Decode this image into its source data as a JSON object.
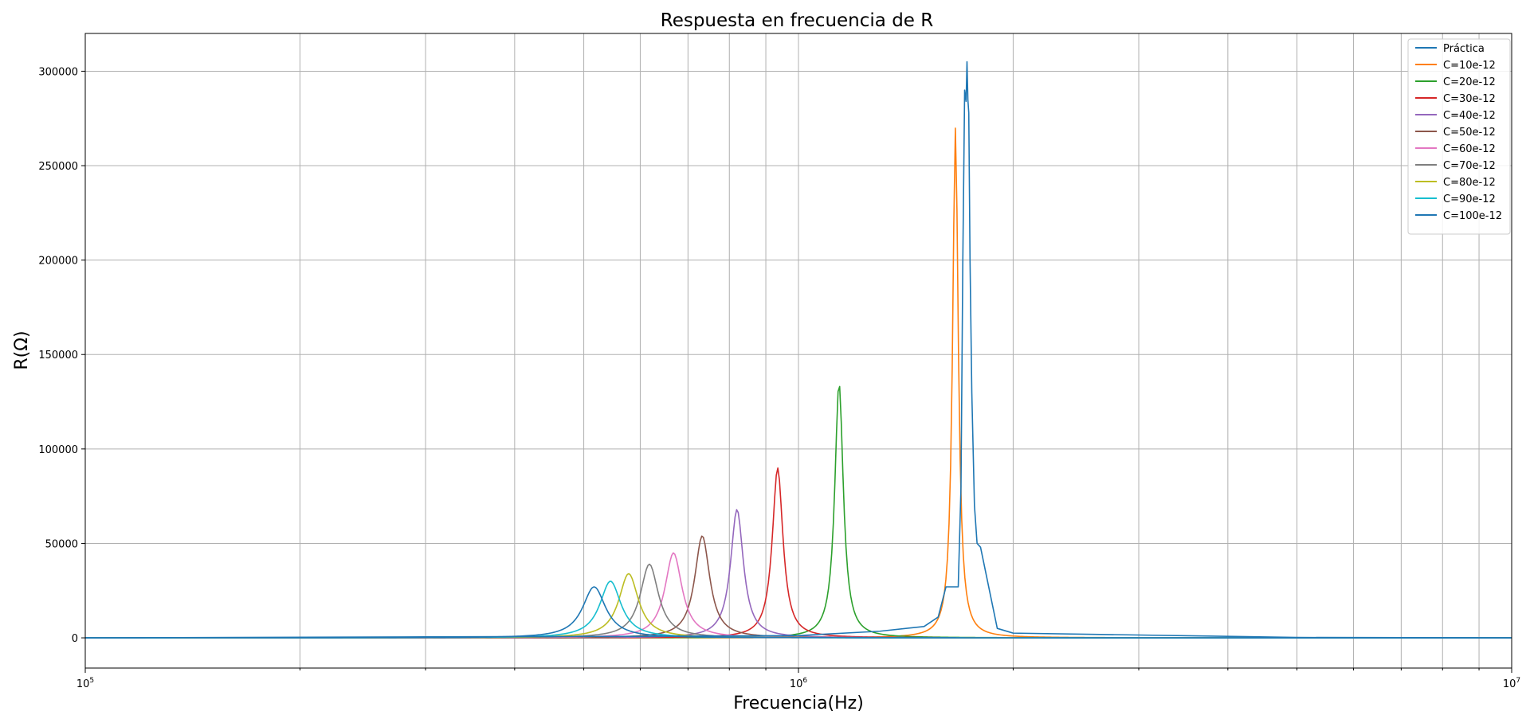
{
  "chart_data": {
    "type": "line",
    "title": "Respuesta en frecuencia de R",
    "xlabel": "Frecuencia(Hz)",
    "ylabel": "R(Ω)",
    "xscale": "log",
    "xlim": [
      100000,
      10000000
    ],
    "ylim": [
      -16000,
      320000
    ],
    "grid": true,
    "legend_position": "top-right",
    "x_ticks": [
      {
        "value": 100000,
        "base": "10",
        "exp": "5"
      },
      {
        "value": 1000000,
        "base": "10",
        "exp": "6"
      },
      {
        "value": 10000000,
        "base": "10",
        "exp": "7"
      }
    ],
    "y_ticks": [
      {
        "value": 0,
        "label": "0"
      },
      {
        "value": 50000,
        "label": "50000"
      },
      {
        "value": 100000,
        "label": "100000"
      },
      {
        "value": 150000,
        "label": "150000"
      },
      {
        "value": 200000,
        "label": "200000"
      },
      {
        "value": 250000,
        "label": "250000"
      },
      {
        "value": 300000,
        "label": "300000"
      }
    ],
    "series": [
      {
        "name": "Práctica",
        "color": "#1f77b4",
        "points": [
          [
            100000,
            0
          ],
          [
            300000,
            500
          ],
          [
            600000,
            800
          ],
          [
            1000000,
            1200
          ],
          [
            1300000,
            3500
          ],
          [
            1500000,
            6000
          ],
          [
            1570000,
            11000
          ],
          [
            1610000,
            27000
          ],
          [
            1675000,
            27000
          ],
          [
            1690000,
            80000
          ],
          [
            1700000,
            200000
          ],
          [
            1710000,
            290000
          ],
          [
            1718000,
            284000
          ],
          [
            1723000,
            305000
          ],
          [
            1728000,
            285000
          ],
          [
            1733000,
            278000
          ],
          [
            1740000,
            200000
          ],
          [
            1750000,
            130000
          ],
          [
            1765000,
            70000
          ],
          [
            1780000,
            50000
          ],
          [
            1800000,
            48000
          ],
          [
            1900000,
            5000
          ],
          [
            2000000,
            2500
          ],
          [
            3000000,
            1500
          ],
          [
            4000000,
            800
          ],
          [
            5000000,
            200
          ],
          [
            10000000,
            0
          ]
        ]
      },
      {
        "name": "C=10e-12",
        "color": "#ff7f0e",
        "f0": 1660000,
        "peak": 270000,
        "Q": 45
      },
      {
        "name": "C=20e-12",
        "color": "#2ca02c",
        "f0": 1140000,
        "peak": 135000,
        "Q": 30
      },
      {
        "name": "C=30e-12",
        "color": "#d62728",
        "f0": 935000,
        "peak": 90000,
        "Q": 24
      },
      {
        "name": "C=40e-12",
        "color": "#9467bd",
        "f0": 820000,
        "peak": 68000,
        "Q": 20
      },
      {
        "name": "C=50e-12",
        "color": "#8c564b",
        "f0": 733000,
        "peak": 54000,
        "Q": 17
      },
      {
        "name": "C=60e-12",
        "color": "#e377c2",
        "f0": 668000,
        "peak": 45000,
        "Q": 15
      },
      {
        "name": "C=70e-12",
        "color": "#7f7f7f",
        "f0": 618000,
        "peak": 39000,
        "Q": 14
      },
      {
        "name": "C=80e-12",
        "color": "#bcbd22",
        "f0": 578000,
        "peak": 34000,
        "Q": 13
      },
      {
        "name": "C=90e-12",
        "color": "#17becf",
        "f0": 545000,
        "peak": 30000,
        "Q": 12
      },
      {
        "name": "C=100e-12",
        "color": "#1f77b4",
        "f0": 517000,
        "peak": 27000,
        "Q": 11
      }
    ]
  }
}
